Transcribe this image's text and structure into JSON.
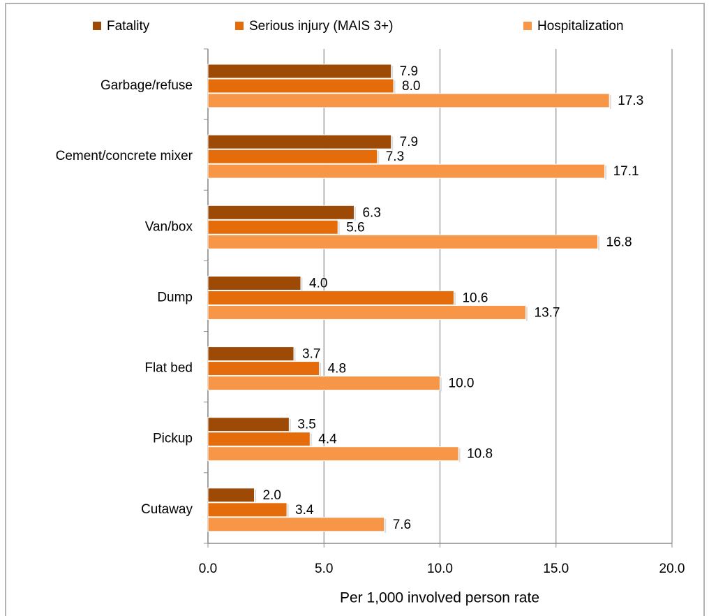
{
  "chart_data": {
    "type": "hbar",
    "x_label": "Per 1,000 involved person rate",
    "categories": [
      "Garbage/refuse",
      "Cement/concrete mixer",
      "Van/box",
      "Dump",
      "Flat bed",
      "Pickup",
      "Cutaway"
    ],
    "series": [
      {
        "name": "Fatality",
        "color": "#9c4a06",
        "values": [
          7.9,
          7.9,
          6.3,
          4.0,
          3.7,
          3.5,
          2.0
        ],
        "value_labels": [
          "7.9",
          "7.9",
          "6.3",
          "4.0",
          "3.7",
          "3.5",
          "2.0"
        ]
      },
      {
        "name": "Serious injury (MAIS 3+)",
        "color": "#e46c0a",
        "values": [
          8.0,
          7.3,
          5.6,
          10.6,
          4.8,
          4.4,
          3.4
        ],
        "value_labels": [
          "8.0",
          "7.3",
          "5.6",
          "10.6",
          "4.8",
          "4.4",
          "3.4"
        ]
      },
      {
        "name": "Hospitalization",
        "color": "#f79646",
        "values": [
          17.3,
          17.1,
          16.8,
          13.7,
          10.0,
          10.8,
          7.6
        ],
        "value_labels": [
          "17.3",
          "17.1",
          "16.8",
          "13.7",
          "10.0",
          "10.8",
          "7.6"
        ]
      }
    ],
    "xlim": [
      0,
      20
    ],
    "xticks": [
      {
        "value": 0,
        "label": "0.0"
      },
      {
        "value": 5,
        "label": "5.0"
      },
      {
        "value": 10,
        "label": "10.0"
      },
      {
        "value": 15,
        "label": "15.0"
      },
      {
        "value": 20,
        "label": "20.0"
      }
    ],
    "grid": true,
    "legend": "top"
  }
}
